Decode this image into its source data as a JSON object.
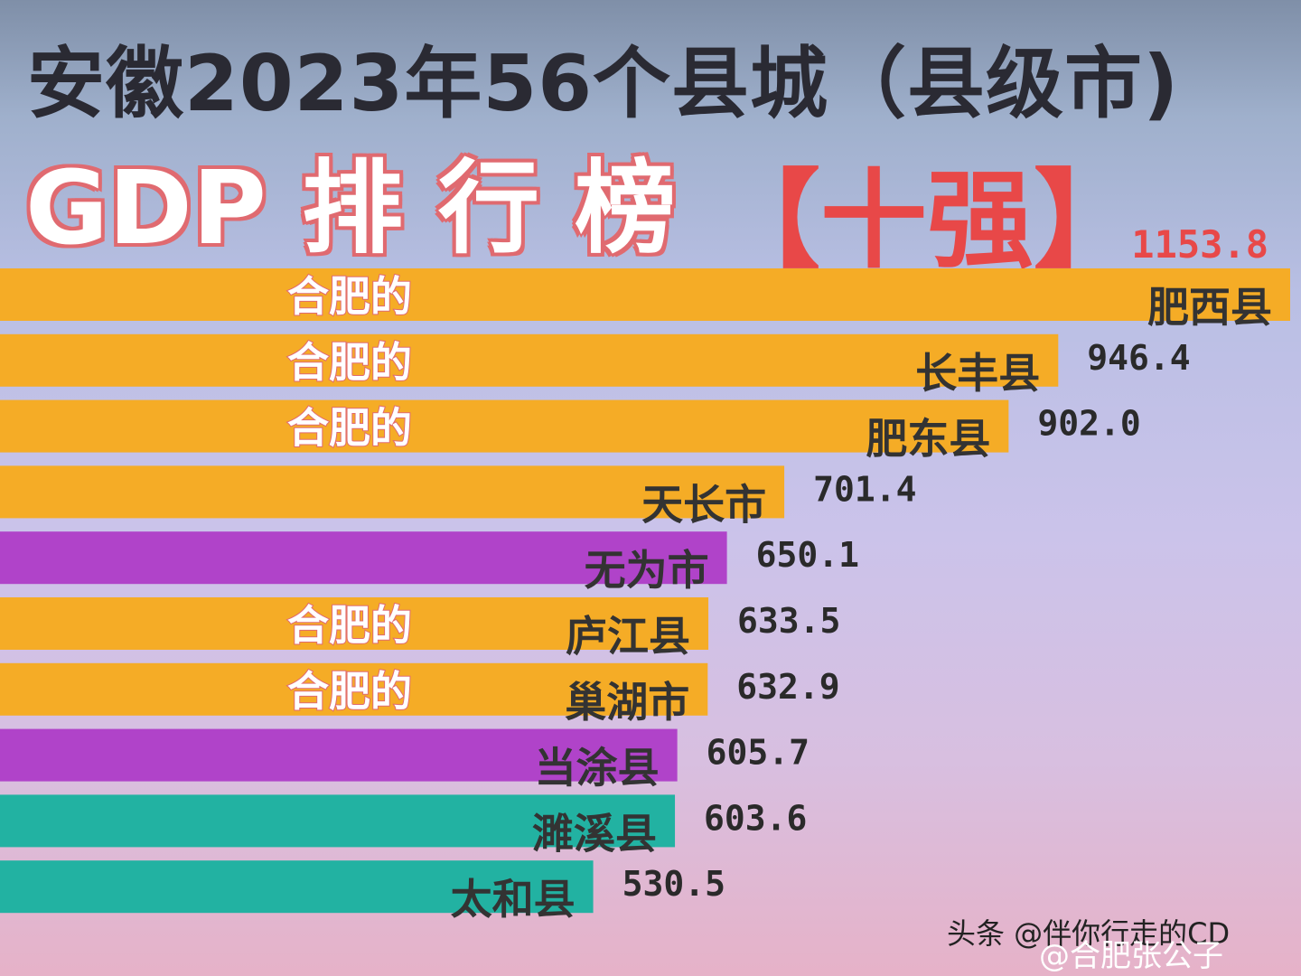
{
  "title": {
    "line1": "安徽2023年56个县城（县级市)",
    "line2": "GDP 排 行 榜",
    "line3": "【十强】"
  },
  "colors": {
    "hefei": "#f5ac26",
    "purple": "#b043c9",
    "teal": "#22b2a2"
  },
  "chart_data": {
    "type": "bar",
    "orientation": "horizontal",
    "categories": [
      "肥西县",
      "长丰县",
      "肥东县",
      "天长市",
      "无为市",
      "庐江县",
      "巢湖市",
      "当涂县",
      "濉溪县",
      "太和县"
    ],
    "values": [
      1153.8,
      946.4,
      902.0,
      701.4,
      650.1,
      633.5,
      632.9,
      605.7,
      603.6,
      530.5
    ],
    "value_labels": [
      "1153.8",
      "946.4",
      "902.0",
      "701.4",
      "650.1",
      "633.5",
      "632.9",
      "605.7",
      "603.6",
      "530.5"
    ],
    "prefix_labels": [
      "合肥的",
      "合肥的",
      "合肥的",
      "",
      "",
      "合肥的",
      "合肥的",
      "",
      "",
      ""
    ],
    "bar_colors": [
      "#f5ac26",
      "#f5ac26",
      "#f5ac26",
      "#f5ac26",
      "#b043c9",
      "#f5ac26",
      "#f5ac26",
      "#b043c9",
      "#22b2a2",
      "#22b2a2"
    ],
    "xlim": [
      0,
      1153.8
    ]
  },
  "watermark": {
    "text1": "头条 @伴你行走的CD",
    "text2": "@合肥张公子"
  }
}
